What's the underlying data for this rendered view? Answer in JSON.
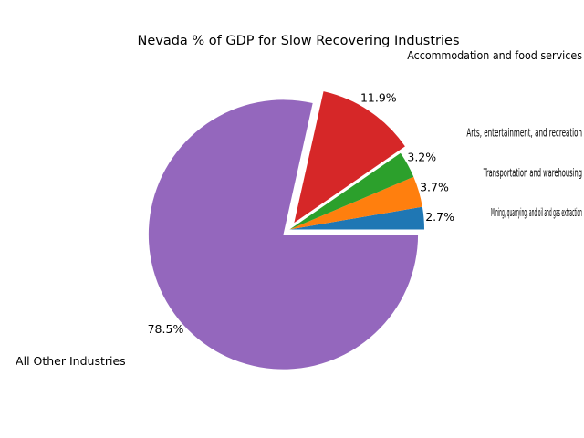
{
  "chart_data": {
    "type": "pie",
    "title": "Nevada % of GDP for Slow Recovering Industries",
    "slices": [
      {
        "label": "Mining, quarrying, and oil and gas extraction",
        "value": 2.7,
        "pct_label": "2.7%",
        "color": "#1f77b4",
        "exploded": false
      },
      {
        "label": "Transportation and warehousing",
        "value": 3.7,
        "pct_label": "3.7%",
        "color": "#ff7f0e",
        "exploded": false
      },
      {
        "label": "Arts, entertainment, and recreation",
        "value": 3.2,
        "pct_label": "3.2%",
        "color": "#2ca02c",
        "exploded": false
      },
      {
        "label": "Accommodation and food services",
        "value": 11.9,
        "pct_label": "11.9%",
        "color": "#d62728",
        "exploded": true
      },
      {
        "label": "All Other Industries",
        "value": 78.5,
        "pct_label": "78.5%",
        "color": "#9467bd",
        "exploded": true
      }
    ],
    "start_angle_deg": 0,
    "direction": "counterclockwise",
    "legend": "none"
  }
}
